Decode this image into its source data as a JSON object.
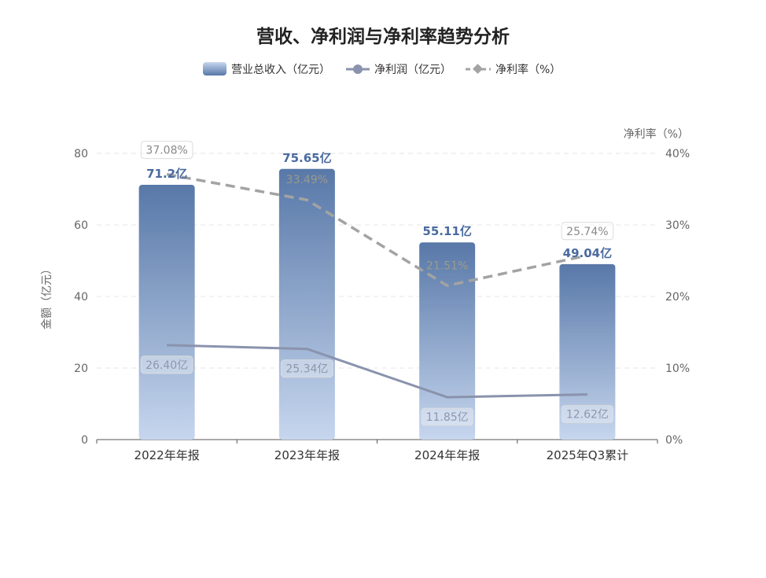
{
  "chart_data": {
    "type": "bar",
    "title": "营收、净利润与净利率趋势分析",
    "categories": [
      "2022年年报",
      "2023年年报",
      "2024年年报",
      "2025年Q3累计"
    ],
    "series": [
      {
        "name": "营业总收入（亿元）",
        "type": "bar",
        "axis": "left",
        "values": [
          71.2,
          75.65,
          55.11,
          49.04
        ],
        "labels": [
          "71.2亿",
          "75.65亿",
          "55.11亿",
          "49.04亿"
        ]
      },
      {
        "name": "净利润（亿元）",
        "type": "line",
        "axis": "left",
        "values": [
          26.4,
          25.34,
          11.85,
          12.62
        ],
        "labels": [
          "26.40亿",
          "25.34亿",
          "11.85亿",
          "12.62亿"
        ]
      },
      {
        "name": "净利率（%）",
        "type": "line",
        "style": "dashed",
        "axis": "right",
        "values": [
          37.08,
          33.49,
          21.51,
          25.74
        ],
        "labels": [
          "37.08%",
          "33.49%",
          "21.51%",
          "25.74%"
        ]
      }
    ],
    "ylabel": "金额（亿元）",
    "y2label": "净利率（%）",
    "ylim": [
      0,
      80
    ],
    "y2lim": [
      0,
      40
    ],
    "yticks": [
      "0",
      "20",
      "40",
      "60",
      "80"
    ],
    "y2ticks": [
      "0%",
      "10%",
      "20%",
      "30%",
      "40%"
    ],
    "grid": true,
    "legend_position": "top-center",
    "colors": {
      "bar_top": "#5878a8",
      "bar_bottom": "#c6d6ee",
      "bar_label": "#4a6aa0",
      "profit_line": "#8a93ad",
      "margin_line": "#a3a3a3",
      "axis_text": "#666666",
      "grid": "#e6e6e6"
    }
  }
}
